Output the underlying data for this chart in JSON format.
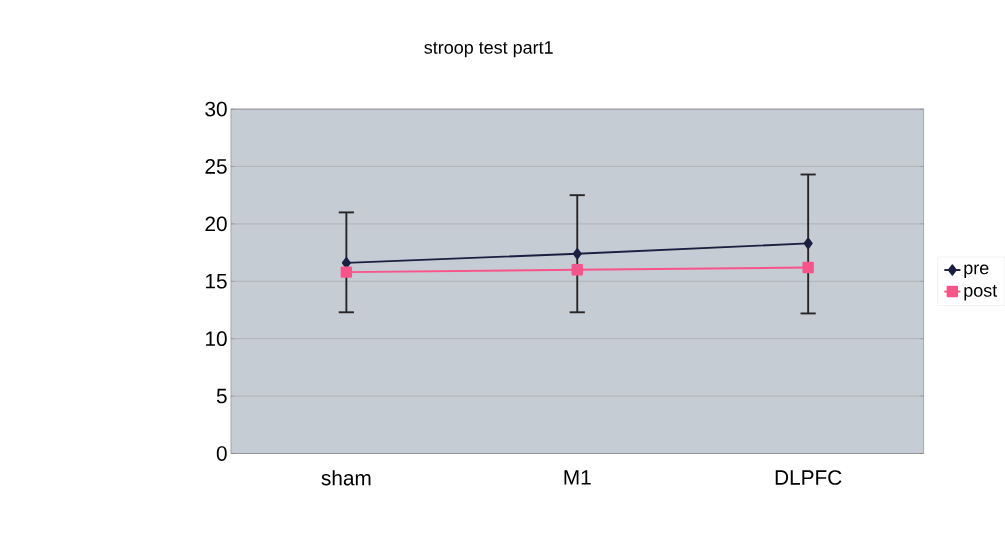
{
  "chart_data": {
    "type": "line",
    "title": "stroop test part1",
    "categories": [
      "sham",
      "M1",
      "DLPFC"
    ],
    "series": [
      {
        "name": "pre",
        "color": "#1c2040",
        "marker": "diamond",
        "values": [
          16.6,
          17.4,
          18.3
        ],
        "errors": [
          [
            12.3,
            21.0
          ],
          [
            12.3,
            22.5
          ],
          [
            12.2,
            24.3
          ]
        ]
      },
      {
        "name": "post",
        "color": "#f7548a",
        "marker": "square",
        "values": [
          15.8,
          16.0,
          16.2
        ]
      }
    ],
    "ylim": [
      0,
      30
    ],
    "yticks": [
      0,
      5,
      10,
      15,
      20,
      25,
      30
    ],
    "grid": "y",
    "legend": "right"
  }
}
